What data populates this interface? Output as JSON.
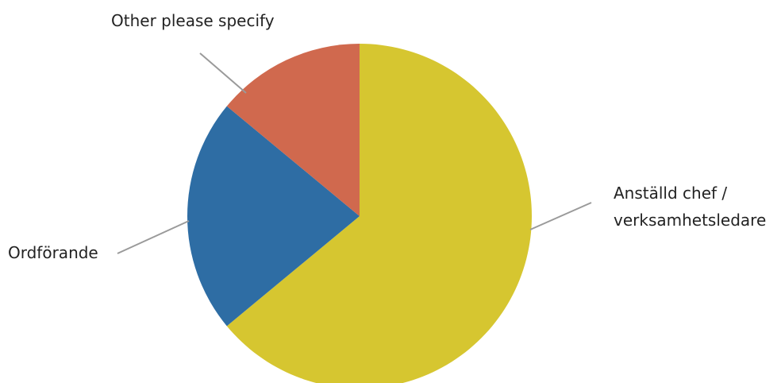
{
  "chart_data": {
    "type": "pie",
    "title": "",
    "slices": [
      {
        "label": "Anställd chef / verksamhetsledare",
        "label_lines": [
          "Anställd chef /",
          "verksamhetsledare"
        ],
        "value": 64,
        "color": "#d6c630"
      },
      {
        "label": "Ordförande",
        "label_lines": [
          "Ordförande"
        ],
        "value": 22,
        "color": "#2e6da4"
      },
      {
        "label": "Other please specify",
        "label_lines": [
          "Other please specify"
        ],
        "value": 14,
        "color": "#d0694e"
      }
    ],
    "legend": "none",
    "start_angle": "12 o'clock",
    "direction": "clockwise"
  }
}
